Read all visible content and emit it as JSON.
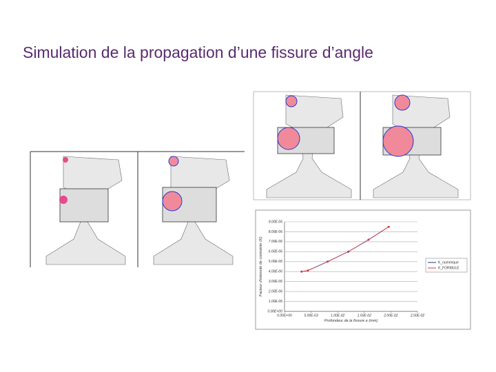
{
  "title": "Simulation de la propagation d’une fissure d’angle",
  "chart_data": {
    "type": "line",
    "x_label": "Profondeur de la fissure e (mm)",
    "y_label": "Facteur d'intensité de contrainte (K)",
    "x": [
      0.0032,
      0.0044,
      0.0081,
      0.012,
      0.0158,
      0.0196
    ],
    "series": [
      {
        "name": "K_numerique",
        "color": "#1f2f8f",
        "values": [
          4.0,
          4.1,
          5.0,
          6.0,
          7.2,
          8.5
        ]
      },
      {
        "name": "K_FORMULE",
        "color": "#e0303a",
        "values": [
          4.0,
          4.1,
          5.0,
          6.0,
          7.2,
          8.5
        ]
      }
    ],
    "xlim": [
      0,
      0.025
    ],
    "xticks": [
      {
        "value": 0,
        "label": "0.00E+00"
      },
      {
        "value": 0.005,
        "label": "5.00E-03"
      },
      {
        "value": 0.01,
        "label": "1.00E-02"
      },
      {
        "value": 0.015,
        "label": "1.50E-02"
      },
      {
        "value": 0.02,
        "label": "2.00E-02"
      },
      {
        "value": 0.025,
        "label": "2.50E-02"
      }
    ],
    "ylim": [
      0,
      9
    ],
    "yticks": [
      {
        "value": 0,
        "label": "0.00E+00"
      },
      {
        "value": 1,
        "label": "1.00E-06"
      },
      {
        "value": 2,
        "label": "2.00E-06"
      },
      {
        "value": 3,
        "label": "3.00E-06"
      },
      {
        "value": 4,
        "label": "4.00E-06"
      },
      {
        "value": 5,
        "label": "5.00E-06"
      },
      {
        "value": 6,
        "label": "6.00E-06"
      },
      {
        "value": 7,
        "label": "7.00E-06"
      },
      {
        "value": 8,
        "label": "8.00E-06"
      },
      {
        "value": 9,
        "label": "9.00E-06"
      }
    ],
    "grid": true
  }
}
